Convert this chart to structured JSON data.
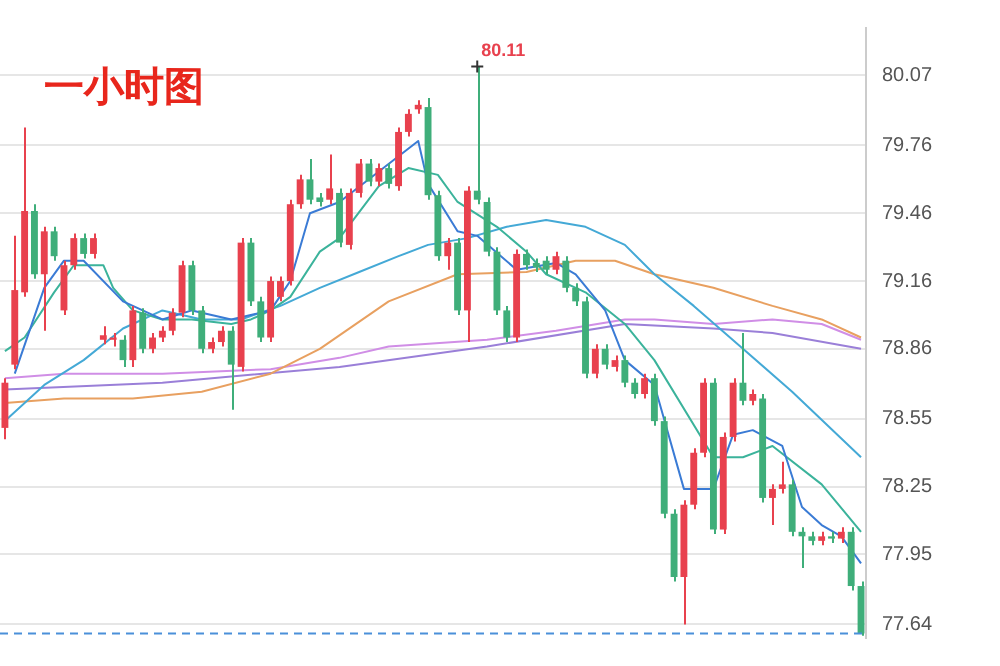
{
  "chart_data": {
    "type": "candlestick",
    "title": "一小时图",
    "categories": [
      null,
      null,
      null,
      null,
      null,
      null,
      null,
      null,
      null,
      null,
      null,
      null,
      null,
      null,
      null,
      null,
      null,
      null,
      null,
      null,
      null,
      null,
      null,
      null,
      null,
      null,
      null,
      null,
      null,
      null,
      null,
      null,
      null,
      null,
      null,
      null,
      null,
      null,
      null,
      null,
      null,
      null,
      null,
      null,
      null,
      null,
      null,
      null,
      null,
      null,
      null,
      null,
      null,
      null,
      null,
      null,
      null,
      null,
      null,
      null,
      null,
      null,
      null,
      null,
      null,
      null,
      null,
      null,
      null,
      null,
      null,
      null,
      null,
      null,
      null,
      null,
      null,
      null,
      null,
      null,
      null,
      null,
      null,
      null,
      null,
      null,
      null,
      null
    ],
    "ylim": [
      77.58,
      80.28
    ],
    "yticks": [
      77.64,
      77.95,
      78.25,
      78.55,
      78.86,
      79.16,
      79.46,
      79.76,
      80.07
    ],
    "grid": "y",
    "tick_labels": "y",
    "legend": false,
    "ref_lines": [
      {
        "axis": "y",
        "value": 77.6,
        "color": "#4a90d9",
        "line_style": "dashed"
      }
    ],
    "annotations": [
      "80.11"
    ],
    "series": [
      {
        "ohlc": [
          [
            78.51,
            78.73,
            78.46,
            78.71
          ],
          [
            78.79,
            79.36,
            78.77,
            79.12
          ],
          [
            79.11,
            79.84,
            79.09,
            79.47
          ],
          [
            79.47,
            79.5,
            79.17,
            79.19
          ],
          [
            79.19,
            79.4,
            78.94,
            79.38
          ],
          [
            79.38,
            79.4,
            79.25,
            79.27
          ],
          [
            79.03,
            79.25,
            79.01,
            79.23
          ],
          [
            79.23,
            79.37,
            79.21,
            79.35
          ],
          [
            79.35,
            79.37,
            79.26,
            79.28
          ],
          [
            79.28,
            79.37,
            79.26,
            79.35
          ],
          [
            78.9,
            78.96,
            78.88,
            78.92
          ],
          [
            78.9,
            78.93,
            78.87,
            78.91
          ],
          [
            78.9,
            78.92,
            78.78,
            78.81
          ],
          [
            78.81,
            79.05,
            78.78,
            79.03
          ],
          [
            79.02,
            79.04,
            78.84,
            78.86
          ],
          [
            78.86,
            78.93,
            78.84,
            78.91
          ],
          [
            78.91,
            78.96,
            78.89,
            78.94
          ],
          [
            78.94,
            79.04,
            78.92,
            79.02
          ],
          [
            79.02,
            79.25,
            79.0,
            79.23
          ],
          [
            79.23,
            79.25,
            79.01,
            79.03
          ],
          [
            79.03,
            79.05,
            78.84,
            78.86
          ],
          [
            78.86,
            78.91,
            78.84,
            78.89
          ],
          [
            78.89,
            78.96,
            78.87,
            78.94
          ],
          [
            78.94,
            78.96,
            78.59,
            78.79
          ],
          [
            78.78,
            79.35,
            78.76,
            79.33
          ],
          [
            79.33,
            79.35,
            79.05,
            79.07
          ],
          [
            79.07,
            79.09,
            78.89,
            78.91
          ],
          [
            78.91,
            79.18,
            78.89,
            79.16
          ],
          [
            79.09,
            79.18,
            79.07,
            79.16
          ],
          [
            79.16,
            79.52,
            79.14,
            79.5
          ],
          [
            79.5,
            79.63,
            79.48,
            79.61
          ],
          [
            79.61,
            79.7,
            79.5,
            79.52
          ],
          [
            79.53,
            79.55,
            79.49,
            79.51
          ],
          [
            79.52,
            79.72,
            79.5,
            79.57
          ],
          [
            79.55,
            79.57,
            79.31,
            79.33
          ],
          [
            79.32,
            79.57,
            79.3,
            79.55
          ],
          [
            79.55,
            79.7,
            79.53,
            79.68
          ],
          [
            79.68,
            79.7,
            79.58,
            79.6
          ],
          [
            79.6,
            79.68,
            79.58,
            79.66
          ],
          [
            79.66,
            79.68,
            79.57,
            79.59
          ],
          [
            79.58,
            79.84,
            79.56,
            79.82
          ],
          [
            79.82,
            79.92,
            79.8,
            79.9
          ],
          [
            79.92,
            79.96,
            79.9,
            79.94
          ],
          [
            79.93,
            79.97,
            79.52,
            79.54
          ],
          [
            79.54,
            79.56,
            79.25,
            79.27
          ],
          [
            79.27,
            79.35,
            79.21,
            79.33
          ],
          [
            79.33,
            79.35,
            79.01,
            79.03
          ],
          [
            79.03,
            79.58,
            78.89,
            79.56
          ],
          [
            79.56,
            80.11,
            79.5,
            79.52
          ],
          [
            79.51,
            79.53,
            79.27,
            79.29
          ],
          [
            79.29,
            79.31,
            79.01,
            79.03
          ],
          [
            79.03,
            79.05,
            78.89,
            78.91
          ],
          [
            78.91,
            79.3,
            78.89,
            79.28
          ],
          [
            79.28,
            79.3,
            79.21,
            79.23
          ],
          [
            79.24,
            79.26,
            79.2,
            79.22
          ],
          [
            79.25,
            79.27,
            79.19,
            79.21
          ],
          [
            79.21,
            79.29,
            79.19,
            79.27
          ],
          [
            79.25,
            79.27,
            79.11,
            79.13
          ],
          [
            79.13,
            79.15,
            79.05,
            79.07
          ],
          [
            79.07,
            79.09,
            78.73,
            78.75
          ],
          [
            78.75,
            78.88,
            78.73,
            78.86
          ],
          [
            78.86,
            78.88,
            78.77,
            78.79
          ],
          [
            78.78,
            78.83,
            78.76,
            78.81
          ],
          [
            78.81,
            78.83,
            78.69,
            78.71
          ],
          [
            78.71,
            78.73,
            78.64,
            78.66
          ],
          [
            78.66,
            78.75,
            78.64,
            78.73
          ],
          [
            78.73,
            78.75,
            78.52,
            78.54
          ],
          [
            78.54,
            78.56,
            78.11,
            78.13
          ],
          [
            78.13,
            78.15,
            77.83,
            77.85
          ],
          [
            77.85,
            78.19,
            77.64,
            78.17
          ],
          [
            78.17,
            78.42,
            78.15,
            78.4
          ],
          [
            78.4,
            78.73,
            78.38,
            78.71
          ],
          [
            78.71,
            78.73,
            78.04,
            78.06
          ],
          [
            78.06,
            78.49,
            78.04,
            78.47
          ],
          [
            78.47,
            78.73,
            78.45,
            78.71
          ],
          [
            78.71,
            78.93,
            78.61,
            78.63
          ],
          [
            78.63,
            78.68,
            78.61,
            78.66
          ],
          [
            78.64,
            78.66,
            78.18,
            78.2
          ],
          [
            78.2,
            78.26,
            78.08,
            78.24
          ],
          [
            78.24,
            78.36,
            78.22,
            78.26
          ],
          [
            78.26,
            78.28,
            78.03,
            78.05
          ],
          [
            78.05,
            78.07,
            77.89,
            78.03
          ],
          [
            78.03,
            78.05,
            77.99,
            78.01
          ],
          [
            78.01,
            78.05,
            77.99,
            78.03
          ],
          [
            78.03,
            78.05,
            78.0,
            78.02
          ],
          [
            78.02,
            78.07,
            78.0,
            78.05
          ],
          [
            78.05,
            78.07,
            77.79,
            77.81
          ],
          [
            77.81,
            77.83,
            77.59,
            77.6
          ]
        ],
        "colors": [
          "#e8414e",
          "#e8414e",
          "#e8414e",
          "#3fae7a",
          "#e8414e",
          "#3fae7a",
          "#e8414e",
          "#e8414e",
          "#3fae7a",
          "#e8414e",
          "#e8414e",
          "#e8414e",
          "#3fae7a",
          "#e8414e",
          "#3fae7a",
          "#e8414e",
          "#e8414e",
          "#e8414e",
          "#e8414e",
          "#3fae7a",
          "#3fae7a",
          "#e8414e",
          "#e8414e",
          "#3fae7a",
          "#e8414e",
          "#3fae7a",
          "#3fae7a",
          "#e8414e",
          "#e8414e",
          "#e8414e",
          "#e8414e",
          "#3fae7a",
          "#3fae7a",
          "#e8414e",
          "#3fae7a",
          "#e8414e",
          "#e8414e",
          "#3fae7a",
          "#e8414e",
          "#3fae7a",
          "#e8414e",
          "#e8414e",
          "#e8414e",
          "#3fae7a",
          "#3fae7a",
          "#e8414e",
          "#3fae7a",
          "#e8414e",
          "#3fae7a",
          "#3fae7a",
          "#3fae7a",
          "#3fae7a",
          "#e8414e",
          "#3fae7a",
          "#3fae7a",
          "#3fae7a",
          "#e8414e",
          "#3fae7a",
          "#3fae7a",
          "#3fae7a",
          "#e8414e",
          "#3fae7a",
          "#e8414e",
          "#3fae7a",
          "#3fae7a",
          "#e8414e",
          "#3fae7a",
          "#3fae7a",
          "#3fae7a",
          "#e8414e",
          "#e8414e",
          "#e8414e",
          "#3fae7a",
          "#e8414e",
          "#e8414e",
          "#3fae7a",
          "#e8414e",
          "#3fae7a",
          "#e8414e",
          "#e8414e",
          "#3fae7a",
          "#3fae7a",
          "#3fae7a",
          "#e8414e",
          "#3fae7a",
          "#e8414e",
          "#3fae7a",
          "#3fae7a"
        ]
      },
      {
        "type": "line",
        "color": "#3a7bd5",
        "values": [
          null,
          78.75,
          null,
          null,
          79.13,
          null,
          79.25,
          null,
          79.25,
          null,
          null,
          null,
          79.07,
          null,
          null,
          null,
          78.99,
          null,
          null,
          79.03,
          null,
          null,
          null,
          78.99,
          null,
          null,
          null,
          79.03,
          null,
          79.16,
          null,
          79.46,
          null,
          null,
          79.51,
          null,
          null,
          null,
          null,
          null,
          null,
          null,
          79.78,
          79.59,
          null,
          null,
          79.38,
          null,
          79.36,
          null,
          null,
          null,
          79.21,
          null,
          null,
          null,
          79.24,
          null,
          79.19,
          null,
          null,
          79.03,
          null,
          78.81,
          null,
          null,
          78.7,
          null,
          null,
          78.24,
          null,
          null,
          78.24,
          null,
          78.48,
          null,
          78.5,
          null,
          null,
          78.43,
          null,
          78.16,
          null,
          78.08,
          null,
          78.03,
          null,
          77.91
        ]
      },
      {
        "type": "line",
        "color": "#3bb39b",
        "values": [
          78.85,
          null,
          78.91,
          null,
          null,
          79.11,
          null,
          79.23,
          null,
          null,
          79.23,
          79.13,
          null,
          79.03,
          null,
          null,
          78.99,
          null,
          null,
          78.99,
          null,
          null,
          null,
          78.97,
          null,
          78.99,
          null,
          79.03,
          null,
          79.09,
          null,
          null,
          79.29,
          null,
          79.35,
          null,
          null,
          null,
          79.58,
          null,
          null,
          79.66,
          null,
          null,
          79.63,
          null,
          79.51,
          null,
          null,
          null,
          79.4,
          null,
          null,
          79.29,
          null,
          79.19,
          null,
          null,
          null,
          79.11,
          null,
          null,
          null,
          78.97,
          null,
          null,
          78.81,
          null,
          null,
          null,
          null,
          null,
          78.38,
          null,
          null,
          78.38,
          null,
          null,
          78.43,
          null,
          null,
          null,
          null,
          78.26,
          null,
          null,
          null,
          78.05
        ]
      },
      {
        "type": "line",
        "color": "#44a9d6",
        "values": [
          78.54,
          null,
          null,
          null,
          78.7,
          null,
          null,
          null,
          78.81,
          null,
          null,
          null,
          78.95,
          null,
          null,
          null,
          79.03,
          null,
          null,
          null,
          78.99,
          null,
          null,
          null,
          78.99,
          null,
          null,
          null,
          79.05,
          null,
          null,
          null,
          79.13,
          null,
          null,
          null,
          79.2,
          null,
          null,
          null,
          79.27,
          null,
          null,
          79.32,
          null,
          null,
          null,
          79.35,
          null,
          null,
          null,
          79.4,
          null,
          null,
          null,
          79.43,
          null,
          null,
          null,
          79.4,
          null,
          null,
          null,
          79.32,
          null,
          null,
          79.19,
          null,
          null,
          null,
          79.05,
          null,
          null,
          null,
          null,
          78.86,
          null,
          null,
          null,
          null,
          78.67,
          null,
          null,
          null,
          null,
          null,
          null,
          78.38
        ]
      },
      {
        "type": "line",
        "color": "#e8a060",
        "values": [
          78.62,
          null,
          null,
          null,
          null,
          null,
          78.64,
          null,
          null,
          null,
          null,
          null,
          null,
          78.64,
          null,
          null,
          null,
          null,
          null,
          null,
          78.67,
          null,
          null,
          null,
          null,
          null,
          null,
          78.75,
          null,
          null,
          null,
          null,
          78.86,
          null,
          null,
          null,
          null,
          null,
          null,
          79.07,
          null,
          null,
          null,
          null,
          null,
          null,
          79.19,
          null,
          null,
          null,
          null,
          null,
          null,
          79.2,
          null,
          null,
          null,
          null,
          79.25,
          null,
          null,
          null,
          79.25,
          null,
          null,
          null,
          79.19,
          null,
          null,
          null,
          null,
          null,
          79.13,
          null,
          null,
          null,
          null,
          null,
          79.05,
          null,
          null,
          null,
          null,
          78.99,
          null,
          null,
          null,
          78.91
        ]
      },
      {
        "type": "line",
        "color": "#d08ee6",
        "values": [
          78.73,
          null,
          null,
          null,
          null,
          null,
          78.75,
          null,
          null,
          null,
          null,
          null,
          null,
          null,
          null,
          null,
          78.75,
          null,
          null,
          null,
          null,
          null,
          null,
          null,
          null,
          null,
          null,
          78.77,
          null,
          null,
          null,
          null,
          null,
          null,
          78.82,
          null,
          null,
          null,
          null,
          78.87,
          null,
          null,
          null,
          null,
          null,
          null,
          null,
          null,
          null,
          78.9,
          null,
          null,
          null,
          null,
          null,
          null,
          78.94,
          null,
          null,
          null,
          null,
          null,
          null,
          78.99,
          null,
          null,
          78.99,
          null,
          null,
          null,
          null,
          null,
          78.97,
          null,
          null,
          null,
          null,
          null,
          78.99,
          null,
          null,
          null,
          null,
          78.97,
          null,
          null,
          null,
          78.9
        ]
      },
      {
        "type": "line",
        "color": "#9a7fd8",
        "values": [
          78.68,
          null,
          null,
          null,
          null,
          null,
          null,
          null,
          null,
          null,
          null,
          null,
          null,
          null,
          null,
          null,
          78.71,
          null,
          null,
          null,
          null,
          null,
          null,
          null,
          null,
          null,
          null,
          null,
          null,
          null,
          null,
          null,
          null,
          null,
          78.78,
          null,
          null,
          null,
          null,
          null,
          null,
          null,
          null,
          null,
          null,
          null,
          null,
          null,
          null,
          78.87,
          null,
          null,
          null,
          null,
          null,
          null,
          null,
          null,
          null,
          null,
          null,
          null,
          null,
          78.97,
          null,
          null,
          null,
          null,
          null,
          null,
          null,
          null,
          78.95,
          null,
          null,
          null,
          null,
          null,
          78.93,
          null,
          null,
          null,
          null,
          null,
          null,
          null,
          null,
          78.86
        ]
      }
    ]
  }
}
